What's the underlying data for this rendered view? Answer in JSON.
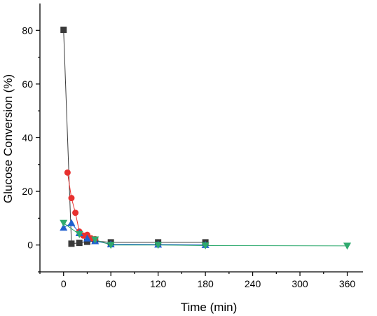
{
  "chart_data": {
    "type": "scatter",
    "xlabel": "Time (min)",
    "ylabel": "Glucose Conversion (%)",
    "xlim": [
      -30,
      380
    ],
    "ylim": [
      -10,
      90
    ],
    "xticks": [
      0,
      60,
      120,
      180,
      240,
      300,
      360
    ],
    "yticks": [
      0,
      20,
      40,
      60,
      80
    ],
    "grid": false,
    "series": [
      {
        "marker": "square",
        "color": "#3a3a3a",
        "x": [
          0,
          10,
          20,
          30,
          40,
          60,
          120,
          180
        ],
        "y": [
          80.2,
          0.5,
          0.8,
          1.2,
          1.5,
          1.0,
          1.0,
          1.0
        ]
      },
      {
        "marker": "circle",
        "color": "#e8302e",
        "x": [
          5,
          10,
          15,
          20,
          25,
          30,
          35,
          40
        ],
        "y": [
          27.0,
          17.5,
          12.0,
          5.0,
          3.5,
          3.8,
          2.5,
          2.2
        ]
      },
      {
        "marker": "triangle-up",
        "color": "#1f5fcf",
        "x": [
          0,
          10,
          20,
          30,
          40,
          60,
          120,
          180
        ],
        "y": [
          6.5,
          8.2,
          4.5,
          2.5,
          1.5,
          0.3,
          0.2,
          0.1
        ]
      },
      {
        "marker": "triangle-down",
        "color": "#2eaa6e",
        "x": [
          0,
          20,
          40,
          60,
          120,
          180,
          360
        ],
        "y": [
          8.2,
          4.0,
          2.0,
          0.0,
          0.0,
          -0.2,
          -0.3
        ]
      }
    ]
  }
}
